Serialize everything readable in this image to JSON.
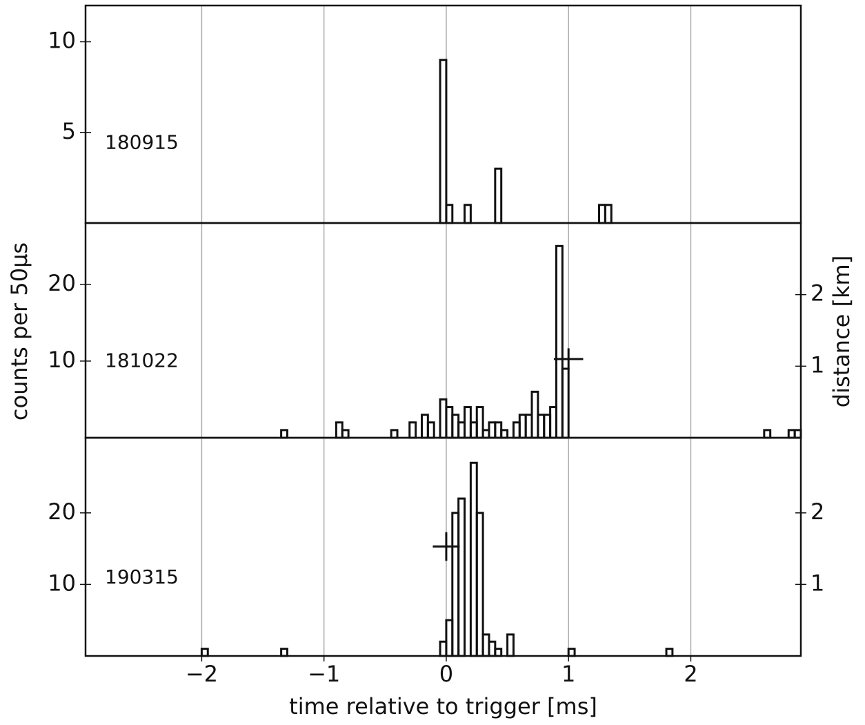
{
  "chart_data": [
    {
      "type": "histogram",
      "label": "180915",
      "color": "#111111",
      "bins": [
        -0.05,
        0,
        0.05,
        0.1,
        0.15,
        0.2,
        0.25,
        0.3,
        0.35,
        0.4,
        0.45,
        0.5,
        0.55,
        0.6,
        0.65,
        0.7,
        0.75,
        0.8,
        0.85,
        0.9,
        0.95,
        1,
        1.05,
        1.1,
        1.15,
        1.2,
        1.25,
        1.3,
        1.35
      ],
      "values": [
        9,
        1,
        0,
        0,
        1,
        0,
        0,
        0,
        0,
        3,
        0,
        0,
        0,
        0,
        0,
        0,
        0,
        0,
        0,
        0,
        0,
        0,
        0,
        0,
        0,
        0,
        1,
        1
      ],
      "xlim": [
        -2.95,
        2.9
      ],
      "xticks": [
        -2,
        -1,
        0,
        1,
        2
      ],
      "grid": "x",
      "ylim": [
        0,
        12
      ],
      "yticks": [
        5,
        10
      ]
    },
    {
      "type": "histogram",
      "label": "181022",
      "color": "#111111",
      "ylabel": "counts per 50µs",
      "y2label": "distance [km]",
      "bins": [
        -1.35,
        -1.3,
        -1.25,
        -1.2,
        -1.15,
        -1.1,
        -1.05,
        -1,
        -0.95,
        -0.9,
        -0.85,
        -0.8,
        -0.75,
        -0.7,
        -0.65,
        -0.6,
        -0.55,
        -0.5,
        -0.45,
        -0.4,
        -0.35,
        -0.3,
        -0.25,
        -0.2,
        -0.15,
        -0.1,
        -0.05,
        0,
        0.05,
        0.1,
        0.15,
        0.2,
        0.25,
        0.3,
        0.35,
        0.4,
        0.45,
        0.5,
        0.55,
        0.6,
        0.65,
        0.7,
        0.75,
        0.8,
        0.85,
        0.9,
        0.95,
        1,
        1.05,
        1.1,
        1.15,
        1.2,
        1.25,
        1.3,
        1.35,
        1.4,
        1.45,
        1.5,
        1.55,
        1.6,
        1.65,
        1.7,
        1.75,
        1.8,
        1.85,
        1.9,
        1.95,
        2,
        2.05,
        2.1,
        2.15,
        2.2,
        2.25,
        2.3,
        2.35,
        2.4,
        2.45,
        2.5,
        2.55,
        2.6,
        2.65,
        2.7,
        2.75,
        2.8,
        2.85,
        2.9
      ],
      "values": [
        1,
        0,
        0,
        0,
        0,
        0,
        0,
        0,
        0,
        2,
        1,
        0,
        0,
        0,
        0,
        0,
        0,
        0,
        1,
        0,
        0,
        2,
        0,
        3,
        2,
        0,
        5,
        4,
        3,
        2,
        4,
        2,
        4,
        1,
        2,
        2,
        1,
        0,
        2,
        3,
        3,
        6,
        3,
        3,
        4,
        25,
        9,
        0,
        0,
        0,
        0,
        0,
        0,
        0,
        0,
        0,
        0,
        0,
        0,
        0,
        0,
        0,
        0,
        0,
        0,
        0,
        0,
        0,
        0,
        0,
        0,
        0,
        0,
        0,
        0,
        0,
        0,
        0,
        0,
        1,
        0,
        0,
        0,
        1,
        1
      ],
      "xlim": [
        -2.95,
        2.9
      ],
      "xticks": [
        -2,
        -1,
        0,
        1,
        2
      ],
      "grid": "x",
      "ylim": [
        0,
        28
      ],
      "yticks": [
        10,
        20
      ],
      "y2lim": [
        0,
        3
      ],
      "y2ticks": [
        1,
        2
      ],
      "errorbar": {
        "x": 1.0,
        "xerr": 0.12,
        "y": 1.1,
        "yerr": 0.15,
        "axis": "y2"
      }
    },
    {
      "type": "histogram",
      "label": "190315",
      "color": "#111111",
      "xlabel": "time relative to trigger [ms]",
      "bins": [
        -2,
        -1.95,
        -1.9,
        -1.85,
        -1.8,
        -1.75,
        -1.7,
        -1.65,
        -1.6,
        -1.55,
        -1.5,
        -1.45,
        -1.4,
        -1.35,
        -1.3,
        -1.25,
        -1.2,
        -1.15,
        -1.1,
        -1.05,
        -1,
        -0.95,
        -0.9,
        -0.85,
        -0.8,
        -0.75,
        -0.7,
        -0.65,
        -0.6,
        -0.55,
        -0.5,
        -0.45,
        -0.4,
        -0.35,
        -0.3,
        -0.25,
        -0.2,
        -0.15,
        -0.1,
        -0.05,
        0,
        0.05,
        0.1,
        0.15,
        0.2,
        0.25,
        0.3,
        0.35,
        0.4,
        0.45,
        0.5,
        0.55,
        0.6,
        0.65,
        0.7,
        0.75,
        0.8,
        0.85,
        0.9,
        0.95,
        1,
        1.05,
        1.1,
        1.15,
        1.2,
        1.25,
        1.3,
        1.35,
        1.4,
        1.45,
        1.5,
        1.55,
        1.6,
        1.65,
        1.7,
        1.75,
        1.8,
        1.85
      ],
      "values": [
        1,
        0,
        0,
        0,
        0,
        0,
        0,
        0,
        0,
        0,
        0,
        0,
        0,
        1,
        0,
        0,
        0,
        0,
        0,
        0,
        0,
        0,
        0,
        0,
        0,
        0,
        0,
        0,
        0,
        0,
        0,
        0,
        0,
        0,
        0,
        0,
        0,
        0,
        0,
        2,
        5,
        20,
        22,
        0,
        27,
        20,
        3,
        2,
        1,
        0,
        3,
        0,
        0,
        0,
        0,
        0,
        0,
        0,
        0,
        0,
        1,
        0,
        0,
        0,
        0,
        0,
        0,
        0,
        0,
        0,
        0,
        0,
        0,
        0,
        0,
        0,
        1
      ],
      "xlim": [
        -2.95,
        2.9
      ],
      "xticks": [
        {
          "value": -2,
          "label": "−2"
        },
        {
          "value": -1,
          "label": "−1"
        },
        0,
        1,
        2
      ],
      "grid": "x",
      "ylim": [
        0,
        30.5
      ],
      "yticks": [
        10,
        20
      ],
      "y2lim": [
        0,
        3.05
      ],
      "y2ticks": [
        1,
        2
      ],
      "errorbar": {
        "x": 0.0,
        "xerr": 0.11,
        "y": 1.53,
        "yerr": 0.2,
        "axis": "y2"
      }
    }
  ]
}
